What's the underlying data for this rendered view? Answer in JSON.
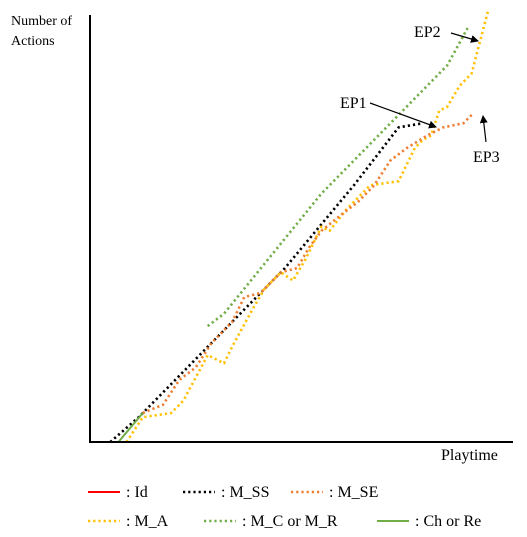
{
  "chart_data": {
    "type": "line",
    "title": "",
    "xlabel": "Playtime",
    "ylabel": "Number of Actions",
    "ylabel_lines": [
      "Number of",
      "Actions"
    ],
    "xlim": [
      0,
      100
    ],
    "ylim": [
      0,
      100
    ],
    "grid": false,
    "legend_position": "bottom",
    "series": [
      {
        "name": ": Id",
        "color": "#ff0000",
        "dash": "solid",
        "points": [
          [
            0,
            0
          ],
          [
            7,
            0
          ]
        ]
      },
      {
        "name": ": M_SS",
        "color": "#000000",
        "dash": "dotted",
        "points": [
          [
            5,
            0
          ],
          [
            12,
            6
          ],
          [
            32,
            26
          ],
          [
            48,
            42
          ],
          [
            65,
            62
          ],
          [
            76,
            76
          ],
          [
            82,
            77
          ]
        ]
      },
      {
        "name": ": M_SE",
        "color": "#ed7d31",
        "dash": "dotted",
        "points": [
          [
            13,
            7
          ],
          [
            18,
            9
          ],
          [
            22,
            15
          ],
          [
            26,
            18
          ],
          [
            30,
            24
          ],
          [
            35,
            29
          ],
          [
            38,
            35
          ],
          [
            42,
            36
          ],
          [
            47,
            41
          ],
          [
            51,
            42
          ],
          [
            54,
            47
          ],
          [
            57,
            51
          ],
          [
            62,
            55
          ],
          [
            66,
            58
          ],
          [
            70,
            62
          ],
          [
            74,
            68
          ],
          [
            78,
            71
          ],
          [
            83,
            74
          ],
          [
            87,
            76
          ],
          [
            92,
            77
          ],
          [
            94,
            79
          ]
        ]
      },
      {
        "name": ": M_A",
        "color": "#ffc000",
        "dash": "dotted",
        "points": [
          [
            9,
            0
          ],
          [
            13,
            6
          ],
          [
            20,
            7
          ],
          [
            23,
            10
          ],
          [
            29,
            21
          ],
          [
            33,
            19
          ],
          [
            35,
            23
          ],
          [
            40,
            32
          ],
          [
            43,
            37
          ],
          [
            47,
            41
          ],
          [
            50,
            39
          ],
          [
            53,
            44
          ],
          [
            57,
            52
          ],
          [
            59,
            51
          ],
          [
            63,
            56
          ],
          [
            69,
            62
          ],
          [
            76,
            63
          ],
          [
            80,
            71
          ],
          [
            82,
            73
          ],
          [
            84,
            74
          ],
          [
            86,
            80
          ],
          [
            88,
            81
          ],
          [
            91,
            86
          ],
          [
            94,
            89
          ],
          [
            98,
            104
          ]
        ]
      },
      {
        "name": ": M_C or M_R",
        "color": "#70ad47",
        "dash": "dotted",
        "points": [
          [
            29,
            28
          ],
          [
            33,
            31
          ],
          [
            57,
            60
          ],
          [
            61,
            64
          ],
          [
            88,
            91
          ],
          [
            93,
            100
          ]
        ]
      },
      {
        "name": ": Ch or Re",
        "color": "#70ad47",
        "dash": "solid",
        "points": [
          [
            7,
            0
          ],
          [
            13,
            7
          ]
        ]
      }
    ],
    "annotations": [
      {
        "text": "EP1",
        "arrow_to": [
          85,
          78
        ]
      },
      {
        "text": "EP2",
        "arrow_to": [
          93,
          100
        ]
      },
      {
        "text": "EP3",
        "arrow_to": [
          94,
          79
        ]
      }
    ]
  }
}
